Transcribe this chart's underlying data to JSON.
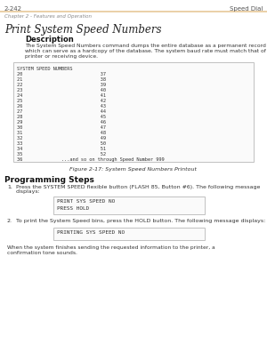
{
  "bg_color": "#ffffff",
  "header_line_color": "#e8c898",
  "header_left": "2-242",
  "header_right": "Speed Dial",
  "subheader": "Chapter 2 - Features and Operation",
  "section_title": "Print System Speed Numbers",
  "desc_heading": "Description",
  "desc_line1": "The System Speed Numbers command dumps the entire database as a permanent record",
  "desc_line2": "which can serve as a hardcopy of the database. The system baud rate must match that of the",
  "desc_line3": "printer or receiving device.",
  "printout_lines": [
    "SYSTEM SPEED NUMBERS",
    "20                            37",
    "21                            38",
    "22                            39",
    "23                            40",
    "24                            41",
    "25                            42",
    "26                            43",
    "27                            44",
    "28                            45",
    "29                            46",
    "30                            47",
    "31                            48",
    "32                            49",
    "33                            50",
    "34                            51",
    "35                            52",
    "36              ...and so on through Speed Number 999"
  ],
  "figure_caption": "Figure 2-17: System Speed Numbers Printout",
  "prog_heading": "Programming Steps",
  "step1_num": "1.",
  "step1_pre": "Press the SYSTEM SPEED flexible button (",
  "step1_bold": "FLASH 85, Button #6",
  "step1_post": "). The following message",
  "step1_post2": "displays:",
  "box1_lines": [
    "PRINT SYS SPEED NO",
    "PRESS HOLD"
  ],
  "step2_num": "2.",
  "step2_text": "To print the System Speed bins, press the HOLD button. The following message displays:",
  "box2_lines": [
    "PRINTING SYS SPEED NO"
  ],
  "closing_line1": "When the system finishes sending the requested information to the printer, a",
  "closing_line2": "confirmation tone sounds.",
  "mono_font": "monospace",
  "serif_font": "serif",
  "sans_font": "sans-serif"
}
